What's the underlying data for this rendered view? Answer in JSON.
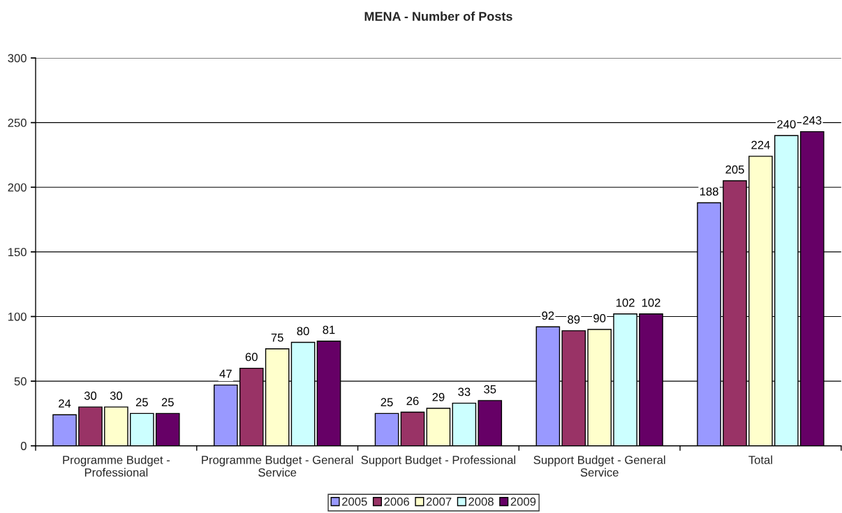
{
  "chart_data": {
    "type": "bar",
    "title": "MENA - Number of Posts",
    "categories": [
      "Programme Budget - Professional",
      "Programme Budget - General Service",
      "Support Budget - Professional",
      "Support Budget - General Service",
      "Total"
    ],
    "series": [
      {
        "name": "2005",
        "color": "#9999ff",
        "values": [
          24,
          47,
          25,
          92,
          188
        ]
      },
      {
        "name": "2006",
        "color": "#993366",
        "values": [
          30,
          60,
          26,
          89,
          205
        ]
      },
      {
        "name": "2007",
        "color": "#ffffcc",
        "values": [
          30,
          75,
          29,
          90,
          224
        ]
      },
      {
        "name": "2008",
        "color": "#ccffff",
        "values": [
          25,
          80,
          33,
          102,
          240
        ]
      },
      {
        "name": "2009",
        "color": "#660066",
        "values": [
          25,
          81,
          35,
          102,
          243
        ]
      }
    ],
    "ylim": [
      0,
      300
    ],
    "yticks": [
      0,
      50,
      100,
      150,
      200,
      250,
      300
    ],
    "grid": "y",
    "legend": "bottom",
    "data_labels": true
  }
}
